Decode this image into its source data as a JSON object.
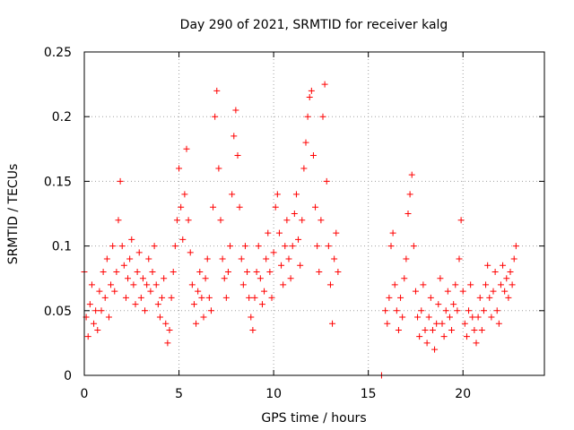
{
  "chart_data": {
    "type": "scatter",
    "title": "Day 290 of 2021, SRMTID for receiver kalg",
    "xlabel": "GPS time / hours",
    "ylabel": "SRMTID / TECUs",
    "xlim": [
      0,
      24.3
    ],
    "ylim": [
      0,
      0.25
    ],
    "x_ticks": [
      0,
      5,
      10,
      15,
      20
    ],
    "y_ticks": [
      0,
      0.05,
      0.1,
      0.15,
      0.2,
      0.25
    ],
    "x_tick_labels": [
      "0",
      "5",
      "10",
      "15",
      "20"
    ],
    "y_tick_labels": [
      "0",
      "0.05",
      "0.1",
      "0.15",
      "0.2",
      "0.25"
    ],
    "grid": true,
    "marker": "+",
    "color": "#ff0000",
    "series": [
      {
        "name": "SRMTID",
        "points": [
          [
            0.0,
            0.08
          ],
          [
            0.1,
            0.045
          ],
          [
            0.2,
            0.03
          ],
          [
            0.3,
            0.055
          ],
          [
            0.4,
            0.07
          ],
          [
            0.5,
            0.04
          ],
          [
            0.6,
            0.05
          ],
          [
            0.7,
            0.035
          ],
          [
            0.8,
            0.065
          ],
          [
            0.9,
            0.05
          ],
          [
            1.0,
            0.08
          ],
          [
            1.1,
            0.06
          ],
          [
            1.2,
            0.09
          ],
          [
            1.3,
            0.045
          ],
          [
            1.4,
            0.07
          ],
          [
            1.5,
            0.1
          ],
          [
            1.6,
            0.065
          ],
          [
            1.7,
            0.08
          ],
          [
            1.8,
            0.12
          ],
          [
            1.9,
            0.15
          ],
          [
            2.0,
            0.1
          ],
          [
            2.1,
            0.085
          ],
          [
            2.2,
            0.06
          ],
          [
            2.3,
            0.075
          ],
          [
            2.4,
            0.09
          ],
          [
            2.5,
            0.105
          ],
          [
            2.6,
            0.07
          ],
          [
            2.7,
            0.055
          ],
          [
            2.8,
            0.08
          ],
          [
            2.9,
            0.095
          ],
          [
            3.0,
            0.06
          ],
          [
            3.1,
            0.075
          ],
          [
            3.2,
            0.05
          ],
          [
            3.3,
            0.07
          ],
          [
            3.4,
            0.09
          ],
          [
            3.5,
            0.065
          ],
          [
            3.6,
            0.08
          ],
          [
            3.7,
            0.1
          ],
          [
            3.8,
            0.07
          ],
          [
            3.9,
            0.055
          ],
          [
            4.0,
            0.045
          ],
          [
            4.1,
            0.06
          ],
          [
            4.2,
            0.075
          ],
          [
            4.3,
            0.04
          ],
          [
            4.4,
            0.025
          ],
          [
            4.5,
            0.035
          ],
          [
            4.6,
            0.06
          ],
          [
            4.7,
            0.08
          ],
          [
            4.8,
            0.1
          ],
          [
            4.9,
            0.12
          ],
          [
            5.0,
            0.16
          ],
          [
            5.1,
            0.13
          ],
          [
            5.2,
            0.105
          ],
          [
            5.3,
            0.14
          ],
          [
            5.4,
            0.175
          ],
          [
            5.5,
            0.12
          ],
          [
            5.6,
            0.095
          ],
          [
            5.7,
            0.07
          ],
          [
            5.8,
            0.055
          ],
          [
            5.9,
            0.04
          ],
          [
            6.0,
            0.065
          ],
          [
            6.1,
            0.08
          ],
          [
            6.2,
            0.06
          ],
          [
            6.3,
            0.045
          ],
          [
            6.4,
            0.075
          ],
          [
            6.5,
            0.09
          ],
          [
            6.6,
            0.06
          ],
          [
            6.7,
            0.05
          ],
          [
            6.8,
            0.13
          ],
          [
            6.9,
            0.2
          ],
          [
            7.0,
            0.22
          ],
          [
            7.1,
            0.16
          ],
          [
            7.2,
            0.12
          ],
          [
            7.3,
            0.09
          ],
          [
            7.4,
            0.075
          ],
          [
            7.5,
            0.06
          ],
          [
            7.6,
            0.08
          ],
          [
            7.7,
            0.1
          ],
          [
            7.8,
            0.14
          ],
          [
            7.9,
            0.185
          ],
          [
            8.0,
            0.205
          ],
          [
            8.1,
            0.17
          ],
          [
            8.2,
            0.13
          ],
          [
            8.3,
            0.09
          ],
          [
            8.4,
            0.07
          ],
          [
            8.5,
            0.1
          ],
          [
            8.6,
            0.08
          ],
          [
            8.7,
            0.06
          ],
          [
            8.8,
            0.045
          ],
          [
            8.9,
            0.035
          ],
          [
            9.0,
            0.06
          ],
          [
            9.1,
            0.08
          ],
          [
            9.2,
            0.1
          ],
          [
            9.3,
            0.075
          ],
          [
            9.4,
            0.055
          ],
          [
            9.5,
            0.065
          ],
          [
            9.6,
            0.09
          ],
          [
            9.7,
            0.11
          ],
          [
            9.8,
            0.08
          ],
          [
            9.9,
            0.06
          ],
          [
            10.0,
            0.095
          ],
          [
            10.1,
            0.13
          ],
          [
            10.2,
            0.14
          ],
          [
            10.3,
            0.11
          ],
          [
            10.4,
            0.085
          ],
          [
            10.5,
            0.07
          ],
          [
            10.6,
            0.1
          ],
          [
            10.7,
            0.12
          ],
          [
            10.8,
            0.09
          ],
          [
            10.9,
            0.075
          ],
          [
            11.0,
            0.1
          ],
          [
            11.1,
            0.125
          ],
          [
            11.2,
            0.14
          ],
          [
            11.3,
            0.105
          ],
          [
            11.4,
            0.085
          ],
          [
            11.5,
            0.12
          ],
          [
            11.6,
            0.16
          ],
          [
            11.7,
            0.18
          ],
          [
            11.8,
            0.2
          ],
          [
            11.9,
            0.215
          ],
          [
            12.0,
            0.22
          ],
          [
            12.1,
            0.17
          ],
          [
            12.2,
            0.13
          ],
          [
            12.3,
            0.1
          ],
          [
            12.4,
            0.08
          ],
          [
            12.5,
            0.12
          ],
          [
            12.6,
            0.2
          ],
          [
            12.7,
            0.225
          ],
          [
            12.8,
            0.15
          ],
          [
            12.9,
            0.1
          ],
          [
            13.0,
            0.07
          ],
          [
            13.1,
            0.04
          ],
          [
            13.2,
            0.09
          ],
          [
            13.3,
            0.11
          ],
          [
            13.4,
            0.08
          ],
          [
            15.7,
            0.0
          ],
          [
            15.9,
            0.05
          ],
          [
            16.0,
            0.04
          ],
          [
            16.1,
            0.06
          ],
          [
            16.2,
            0.1
          ],
          [
            16.3,
            0.11
          ],
          [
            16.4,
            0.07
          ],
          [
            16.5,
            0.05
          ],
          [
            16.6,
            0.035
          ],
          [
            16.7,
            0.06
          ],
          [
            16.8,
            0.045
          ],
          [
            16.9,
            0.075
          ],
          [
            17.0,
            0.09
          ],
          [
            17.1,
            0.125
          ],
          [
            17.2,
            0.14
          ],
          [
            17.3,
            0.155
          ],
          [
            17.4,
            0.1
          ],
          [
            17.5,
            0.065
          ],
          [
            17.6,
            0.045
          ],
          [
            17.7,
            0.03
          ],
          [
            17.8,
            0.05
          ],
          [
            17.9,
            0.07
          ],
          [
            18.0,
            0.035
          ],
          [
            18.1,
            0.025
          ],
          [
            18.2,
            0.045
          ],
          [
            18.3,
            0.06
          ],
          [
            18.4,
            0.035
          ],
          [
            18.5,
            0.02
          ],
          [
            18.6,
            0.04
          ],
          [
            18.7,
            0.055
          ],
          [
            18.8,
            0.075
          ],
          [
            18.9,
            0.04
          ],
          [
            19.0,
            0.03
          ],
          [
            19.1,
            0.05
          ],
          [
            19.2,
            0.065
          ],
          [
            19.3,
            0.045
          ],
          [
            19.4,
            0.035
          ],
          [
            19.5,
            0.055
          ],
          [
            19.6,
            0.07
          ],
          [
            19.7,
            0.05
          ],
          [
            19.8,
            0.09
          ],
          [
            19.9,
            0.12
          ],
          [
            20.0,
            0.065
          ],
          [
            20.1,
            0.04
          ],
          [
            20.2,
            0.03
          ],
          [
            20.3,
            0.05
          ],
          [
            20.4,
            0.07
          ],
          [
            20.5,
            0.045
          ],
          [
            20.6,
            0.035
          ],
          [
            20.7,
            0.025
          ],
          [
            20.8,
            0.045
          ],
          [
            20.9,
            0.06
          ],
          [
            21.0,
            0.035
          ],
          [
            21.1,
            0.05
          ],
          [
            21.2,
            0.07
          ],
          [
            21.3,
            0.085
          ],
          [
            21.4,
            0.06
          ],
          [
            21.5,
            0.045
          ],
          [
            21.6,
            0.065
          ],
          [
            21.7,
            0.08
          ],
          [
            21.8,
            0.05
          ],
          [
            21.9,
            0.04
          ],
          [
            22.0,
            0.07
          ],
          [
            22.1,
            0.085
          ],
          [
            22.2,
            0.065
          ],
          [
            22.3,
            0.075
          ],
          [
            22.4,
            0.06
          ],
          [
            22.5,
            0.08
          ],
          [
            22.6,
            0.07
          ],
          [
            22.7,
            0.09
          ],
          [
            22.8,
            0.1
          ]
        ]
      }
    ]
  }
}
